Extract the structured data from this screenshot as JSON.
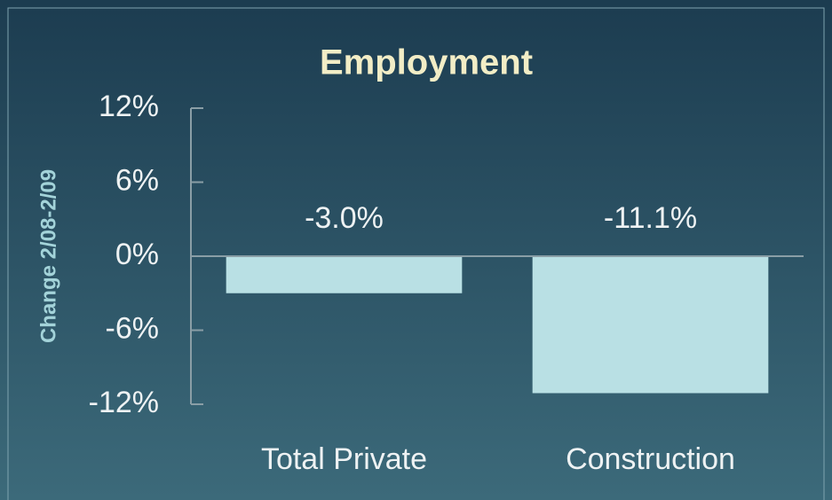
{
  "chart_data": {
    "type": "bar",
    "title": "Employment",
    "y_label": "Change 2/08-2/09",
    "categories": [
      "Total Private",
      "Construction"
    ],
    "values": [
      -3.0,
      -11.1
    ],
    "value_labels": [
      "-3.0%",
      "-11.1%"
    ],
    "color": "#b9e0e4",
    "ylim": [
      -12,
      12
    ],
    "yticks": [
      {
        "value": -12,
        "label": "-12%"
      },
      {
        "value": -6,
        "label": "-6%"
      },
      {
        "value": 0,
        "label": "0%"
      },
      {
        "value": 6,
        "label": "6%"
      },
      {
        "value": 12,
        "label": "12%"
      }
    ]
  }
}
